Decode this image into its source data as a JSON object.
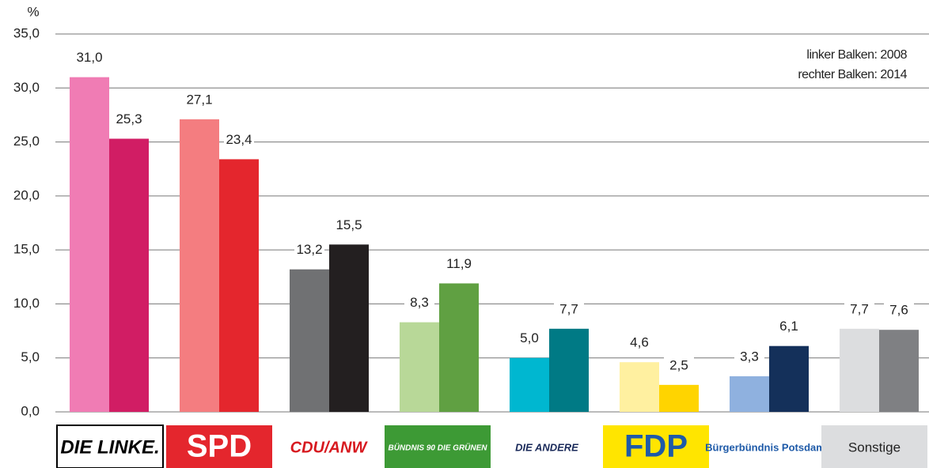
{
  "chart_data": {
    "type": "bar",
    "y_label": "%",
    "categories": [
      "DIE LINKE.",
      "SPD",
      "CDU/ANW",
      "BÜNDNIS 90 DIE GRÜNEN",
      "DIE ANDERE",
      "FDP",
      "Bürgerbündnis Potsdam",
      "Sonstige"
    ],
    "series": [
      {
        "name": "linker Balken: 2008",
        "colors": [
          "#f07cb4",
          "#f47d80",
          "#707173",
          "#b8d898",
          "#00b7d0",
          "#fff0a0",
          "#8fb1df",
          "#dcdddf"
        ],
        "values": [
          31.0,
          27.1,
          13.2,
          8.3,
          5.0,
          4.6,
          3.3,
          7.7
        ],
        "value_labels": [
          "31,0",
          "27,1",
          "13,2",
          "8,3",
          "5,0",
          "4,6",
          "3,3",
          "7,7"
        ]
      },
      {
        "name": "rechter Balken: 2014",
        "colors": [
          "#d11d64",
          "#e4262d",
          "#231f20",
          "#60a042",
          "#007a85",
          "#ffd400",
          "#14305a",
          "#7f8083"
        ],
        "values": [
          25.3,
          23.4,
          15.5,
          11.9,
          7.7,
          2.5,
          6.1,
          7.6
        ],
        "value_labels": [
          "25,3",
          "23,4",
          "15,5",
          "11,9",
          "7,7",
          "2,5",
          "6,1",
          "7,6"
        ]
      }
    ],
    "ylim": [
      0,
      35
    ],
    "yticks": [
      {
        "value": 0,
        "label": "0,0"
      },
      {
        "value": 5,
        "label": "5,0"
      },
      {
        "value": 10,
        "label": "10,0"
      },
      {
        "value": 15,
        "label": "15,0"
      },
      {
        "value": 20,
        "label": "20,0"
      },
      {
        "value": 25,
        "label": "25,0"
      },
      {
        "value": 30,
        "label": "30,0"
      },
      {
        "value": 35,
        "label": "35,0"
      }
    ],
    "grid": true
  }
}
